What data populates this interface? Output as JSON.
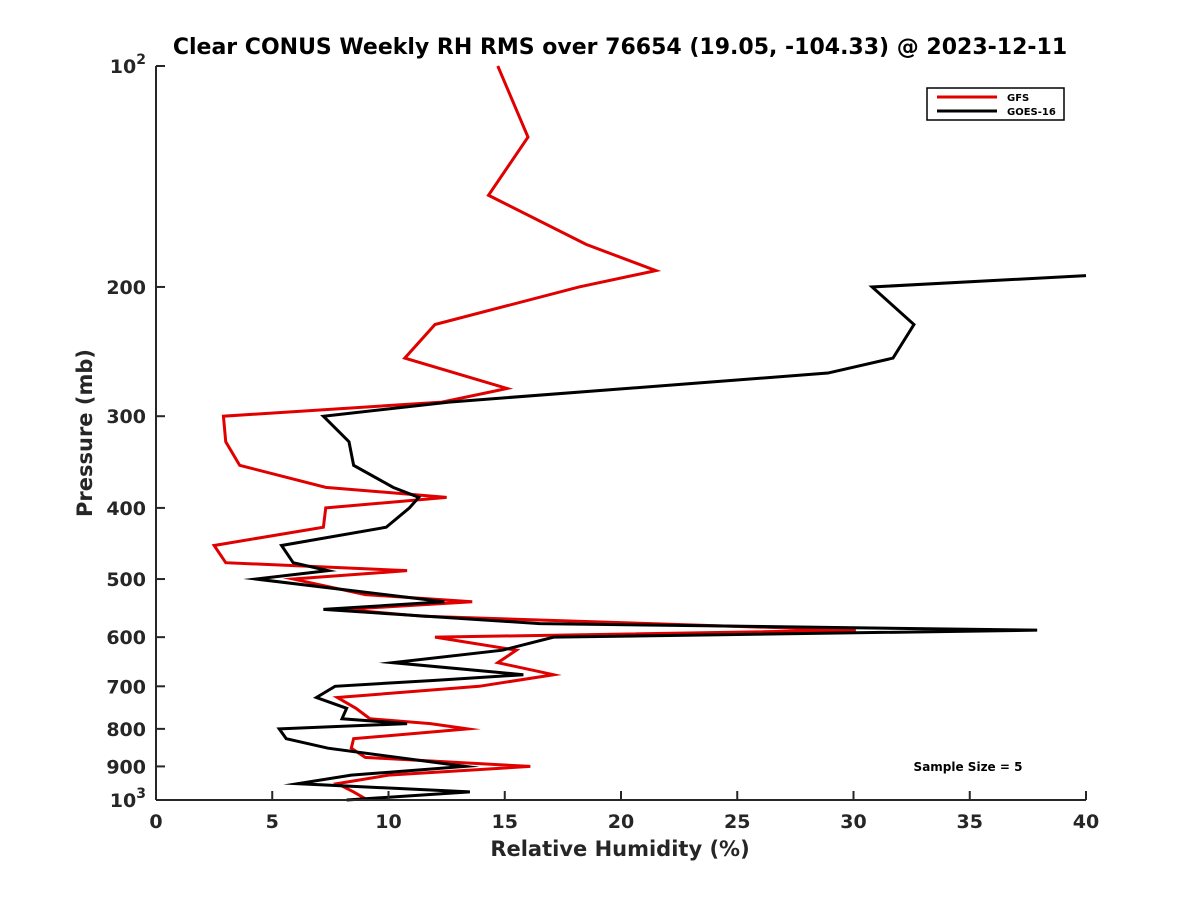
{
  "chart_data": {
    "type": "line",
    "title": "Clear CONUS Weekly RH RMS over 76654 (19.05, -104.33) @ 2023-12-11",
    "xlabel": "Relative Humidity (%)",
    "ylabel": "Pressure (mb)",
    "xlim": [
      0,
      40
    ],
    "ylim": [
      100,
      1000
    ],
    "yscale": "log",
    "ydirection": "reversed",
    "xticks": [
      0,
      5,
      10,
      15,
      20,
      25,
      30,
      35,
      40
    ],
    "yticks": [
      {
        "value": 100,
        "label": "10",
        "sup": "2"
      },
      {
        "value": 200,
        "label": "200",
        "sup": ""
      },
      {
        "value": 300,
        "label": "300",
        "sup": ""
      },
      {
        "value": 400,
        "label": "400",
        "sup": ""
      },
      {
        "value": 500,
        "label": "500",
        "sup": ""
      },
      {
        "value": 600,
        "label": "600",
        "sup": ""
      },
      {
        "value": 700,
        "label": "700",
        "sup": ""
      },
      {
        "value": 800,
        "label": "800",
        "sup": ""
      },
      {
        "value": 900,
        "label": "900",
        "sup": ""
      },
      {
        "value": 1000,
        "label": "10",
        "sup": "3"
      }
    ],
    "legend_position": "top-right",
    "annotation": "Sample Size = 5",
    "series": [
      {
        "name": "GFS",
        "color": "#e00000",
        "points": [
          [
            14.7,
            100
          ],
          [
            16.0,
            125
          ],
          [
            14.3,
            150
          ],
          [
            18.5,
            175
          ],
          [
            21.5,
            190
          ],
          [
            18.2,
            200
          ],
          [
            12.0,
            225
          ],
          [
            10.7,
            250
          ],
          [
            15.1,
            275
          ],
          [
            12.3,
            287
          ],
          [
            2.9,
            300
          ],
          [
            3.0,
            325
          ],
          [
            3.6,
            350
          ],
          [
            7.3,
            375
          ],
          [
            12.5,
            387
          ],
          [
            7.3,
            400
          ],
          [
            7.2,
            425
          ],
          [
            2.5,
            450
          ],
          [
            3.0,
            475
          ],
          [
            10.8,
            487
          ],
          [
            5.9,
            500
          ],
          [
            9.0,
            525
          ],
          [
            13.6,
            537
          ],
          [
            8.1,
            550
          ],
          [
            11.5,
            562
          ],
          [
            30.1,
            587
          ],
          [
            12.0,
            600
          ],
          [
            15.5,
            625
          ],
          [
            14.7,
            650
          ],
          [
            17.1,
            675
          ],
          [
            13.9,
            700
          ],
          [
            7.8,
            725
          ],
          [
            8.6,
            750
          ],
          [
            9.2,
            775
          ],
          [
            11.8,
            787
          ],
          [
            13.4,
            800
          ],
          [
            8.5,
            825
          ],
          [
            8.4,
            850
          ],
          [
            9.0,
            875
          ],
          [
            16.1,
            900
          ],
          [
            10.0,
            925
          ],
          [
            7.8,
            950
          ],
          [
            8.5,
            975
          ],
          [
            9.1,
            1000
          ]
        ]
      },
      {
        "name": "GOES-16",
        "color": "#000000",
        "points": [
          [
            40.0,
            193
          ],
          [
            30.8,
            200
          ],
          [
            32.6,
            225
          ],
          [
            31.7,
            250
          ],
          [
            28.9,
            262
          ],
          [
            12.6,
            287
          ],
          [
            7.2,
            300
          ],
          [
            8.3,
            325
          ],
          [
            8.5,
            350
          ],
          [
            10.2,
            375
          ],
          [
            11.3,
            387
          ],
          [
            10.9,
            400
          ],
          [
            9.9,
            425
          ],
          [
            5.4,
            450
          ],
          [
            5.9,
            475
          ],
          [
            7.4,
            487
          ],
          [
            4.3,
            500
          ],
          [
            12.4,
            537
          ],
          [
            7.2,
            550
          ],
          [
            16.5,
            575
          ],
          [
            37.9,
            587
          ],
          [
            17.1,
            600
          ],
          [
            14.9,
            625
          ],
          [
            10.2,
            650
          ],
          [
            15.8,
            675
          ],
          [
            12.0,
            687
          ],
          [
            7.7,
            700
          ],
          [
            6.9,
            725
          ],
          [
            8.2,
            750
          ],
          [
            8.0,
            775
          ],
          [
            10.8,
            787
          ],
          [
            5.3,
            800
          ],
          [
            5.6,
            825
          ],
          [
            7.4,
            850
          ],
          [
            13.3,
            900
          ],
          [
            8.4,
            925
          ],
          [
            6.1,
            950
          ],
          [
            13.5,
            975
          ],
          [
            8.2,
            1000
          ]
        ]
      }
    ]
  }
}
